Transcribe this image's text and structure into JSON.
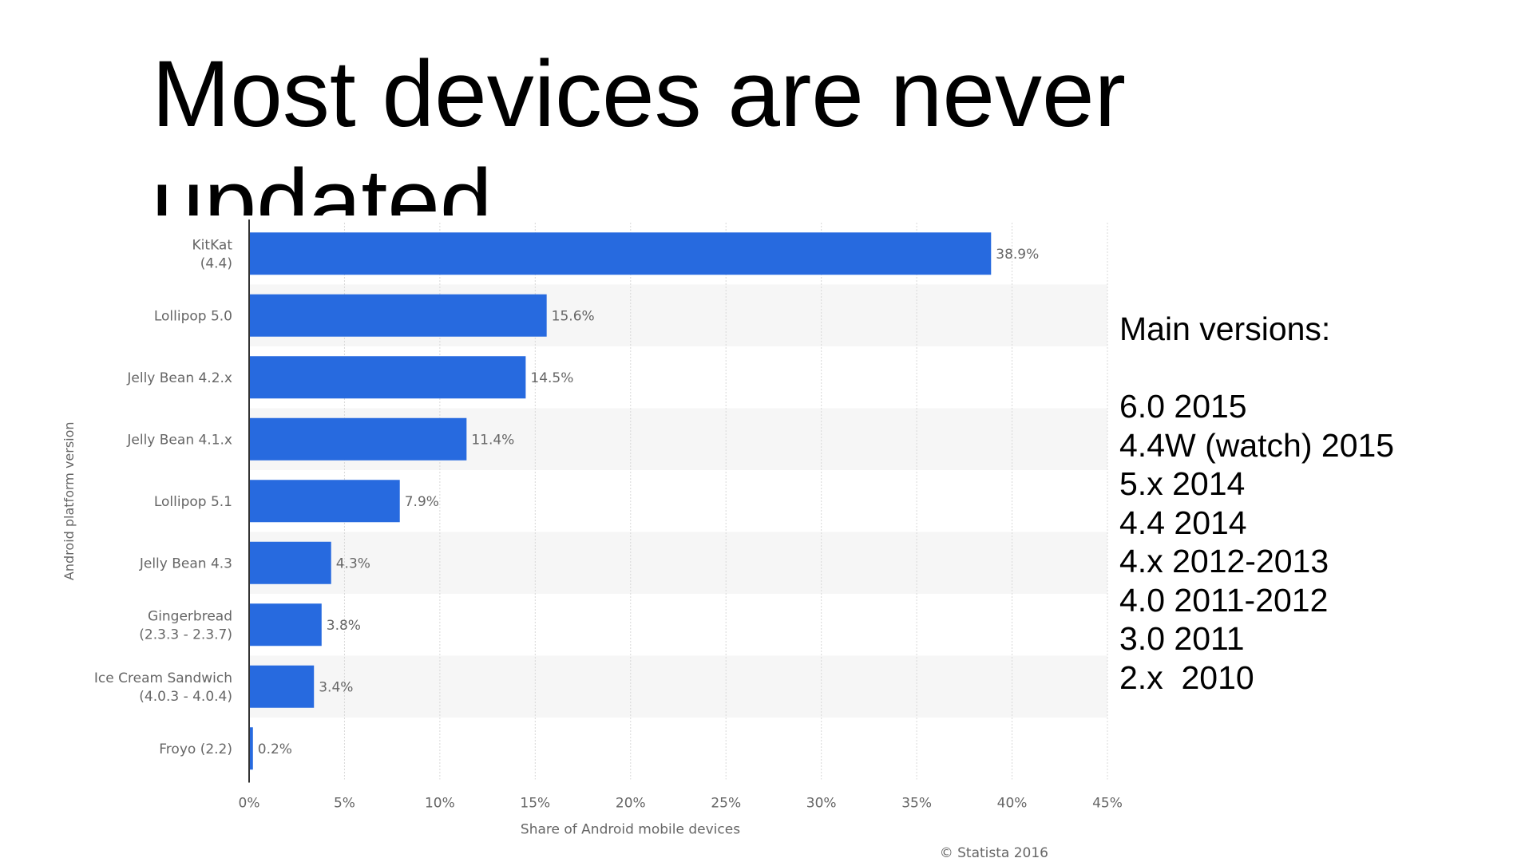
{
  "slide": {
    "title": "Most devices are never updated"
  },
  "notes": {
    "heading": "Main versions:",
    "lines": [
      "6.0 2015",
      "4.4W (watch) 2015",
      "5.x 2014",
      "4.4 2014",
      "4.x 2012-2013",
      "4.0 2011-2012",
      "3.0 2011",
      "2.x  2010"
    ]
  },
  "chart_data": {
    "type": "bar",
    "orientation": "horizontal",
    "categories": [
      [
        "KitKat",
        "(4.4)"
      ],
      [
        "Lollipop 5.0"
      ],
      [
        "Jelly Bean 4.2.x"
      ],
      [
        "Jelly Bean 4.1.x"
      ],
      [
        "Lollipop 5.1"
      ],
      [
        "Jelly Bean 4.3"
      ],
      [
        "Gingerbread",
        "(2.3.3 - 2.3.7)"
      ],
      [
        "Ice Cream Sandwich",
        "(4.0.3 - 4.0.4)"
      ],
      [
        "Froyo (2.2)"
      ]
    ],
    "values": [
      38.9,
      15.6,
      14.5,
      11.4,
      7.9,
      4.3,
      3.8,
      3.4,
      0.2
    ],
    "value_labels": [
      "38.9%",
      "15.6%",
      "14.5%",
      "11.4%",
      "7.9%",
      "4.3%",
      "3.8%",
      "3.4%",
      "0.2%"
    ],
    "xticks": [
      "0%",
      "5%",
      "10%",
      "15%",
      "20%",
      "25%",
      "30%",
      "35%",
      "40%",
      "45%"
    ],
    "xlim": [
      0,
      45
    ],
    "xlabel": "Share of Android mobile devices",
    "ylabel": "Android platform version",
    "source": "© Statista 2016",
    "grid": true,
    "bar_color": "#276ADF",
    "band_color": "#F6F6F6"
  }
}
